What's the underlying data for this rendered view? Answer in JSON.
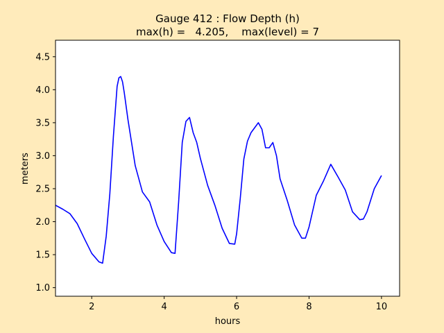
{
  "colors": {
    "figure_bg": "#ffebbb",
    "axes_bg": "#ffffff",
    "line": "#0000ff"
  },
  "chart_data": {
    "type": "line",
    "title_line1": "Gauge 412 : Flow Depth (h)",
    "title_line2": "max(h) =   4.205,    max(level) = 7",
    "xlabel": "hours",
    "ylabel": "meters",
    "xlim": [
      1.0,
      10.5
    ],
    "ylim": [
      0.87,
      4.75
    ],
    "xticks": [
      2,
      4,
      6,
      8,
      10
    ],
    "yticks": [
      1.0,
      1.5,
      2.0,
      2.5,
      3.0,
      3.5,
      4.0,
      4.5
    ],
    "xtick_labels": [
      "2",
      "4",
      "6",
      "8",
      "10"
    ],
    "ytick_labels": [
      "1.0",
      "1.5",
      "2.0",
      "2.5",
      "3.0",
      "3.5",
      "4.0",
      "4.5"
    ],
    "grid": false,
    "series": [
      {
        "color": "#0000ff",
        "x": [
          1.0,
          1.2,
          1.4,
          1.6,
          1.8,
          2.0,
          2.2,
          2.3,
          2.4,
          2.5,
          2.6,
          2.7,
          2.75,
          2.8,
          2.85,
          2.9,
          3.0,
          3.2,
          3.4,
          3.6,
          3.8,
          4.0,
          4.2,
          4.3,
          4.4,
          4.5,
          4.6,
          4.7,
          4.8,
          4.9,
          5.0,
          5.2,
          5.4,
          5.6,
          5.8,
          5.95,
          6.0,
          6.1,
          6.2,
          6.3,
          6.4,
          6.6,
          6.7,
          6.8,
          6.9,
          7.0,
          7.1,
          7.2,
          7.4,
          7.6,
          7.8,
          7.9,
          8.0,
          8.2,
          8.4,
          8.6,
          8.8,
          9.0,
          9.2,
          9.4,
          9.5,
          9.6,
          9.8,
          10.0
        ],
        "y": [
          2.25,
          2.19,
          2.12,
          1.97,
          1.74,
          1.52,
          1.39,
          1.37,
          1.78,
          2.42,
          3.3,
          4.05,
          4.18,
          4.2,
          4.12,
          3.95,
          3.55,
          2.85,
          2.45,
          2.3,
          1.95,
          1.7,
          1.53,
          1.52,
          2.3,
          3.2,
          3.52,
          3.58,
          3.35,
          3.2,
          2.96,
          2.55,
          2.25,
          1.9,
          1.67,
          1.66,
          1.82,
          2.35,
          2.95,
          3.22,
          3.35,
          3.5,
          3.4,
          3.12,
          3.12,
          3.2,
          3.0,
          2.65,
          2.32,
          1.95,
          1.75,
          1.75,
          1.92,
          2.4,
          2.62,
          2.87,
          2.68,
          2.48,
          2.15,
          2.03,
          2.04,
          2.15,
          2.5,
          2.7
        ]
      }
    ]
  }
}
